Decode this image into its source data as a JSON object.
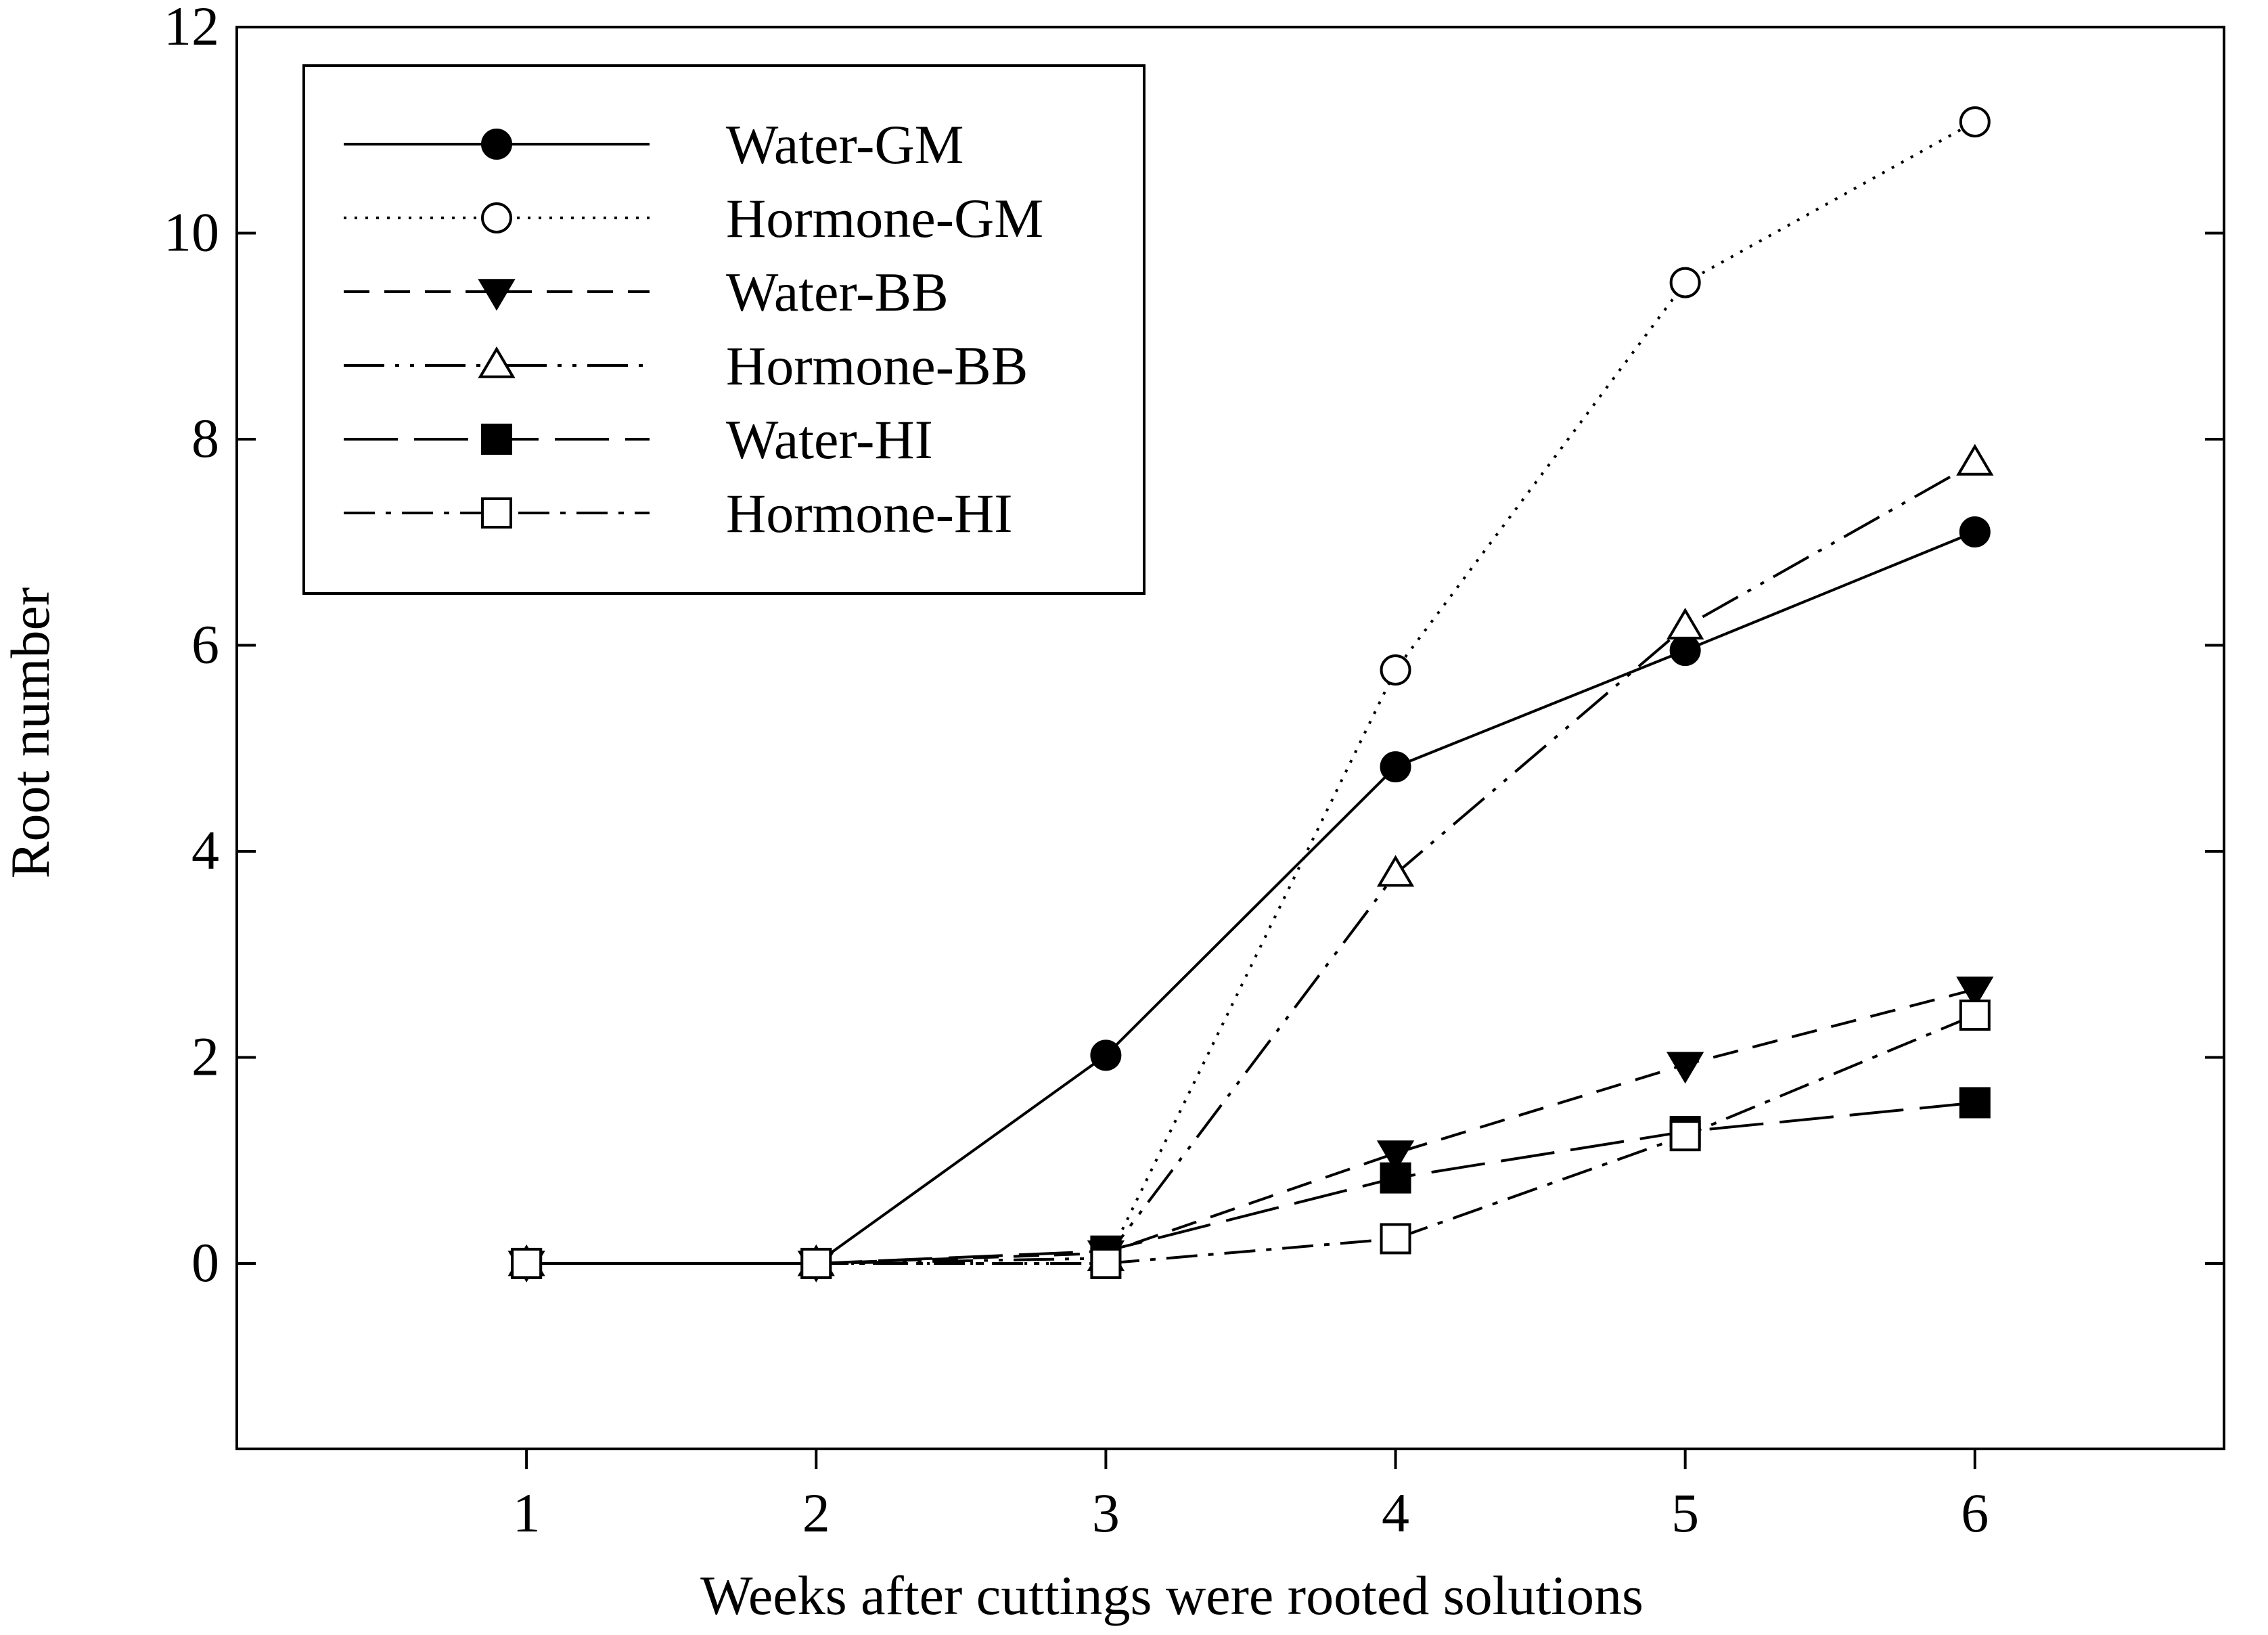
{
  "chart_data": {
    "type": "line",
    "title": "",
    "xlabel": "Weeks after cuttings were rooted solutions",
    "ylabel": "Root number",
    "xlim": [
      0.0,
      6.86
    ],
    "ylim": [
      -1.8,
      12
    ],
    "xticks": [
      1,
      2,
      3,
      4,
      5,
      6
    ],
    "yticks": [
      0,
      2,
      4,
      6,
      8,
      10,
      12
    ],
    "x": [
      1,
      2,
      3,
      4,
      5,
      6
    ],
    "legend_position": "top-left",
    "grid": false,
    "series": [
      {
        "name": "Water-GM",
        "marker": "filled-circle",
        "dash": "solid",
        "values": [
          0,
          0,
          2.02,
          4.82,
          5.95,
          7.1
        ]
      },
      {
        "name": "Hormone-GM",
        "marker": "open-circle",
        "dash": "dotted",
        "values": [
          0,
          0,
          0,
          5.76,
          9.52,
          11.08
        ]
      },
      {
        "name": "Water-BB",
        "marker": "filled-triangle-down",
        "dash": "dashed",
        "values": [
          0,
          0,
          0.1,
          1.07,
          1.93,
          2.66
        ]
      },
      {
        "name": "Hormone-BB",
        "marker": "open-triangle-up",
        "dash": "dash-dot-dot",
        "values": [
          0,
          0,
          0.05,
          3.78,
          6.18,
          7.77
        ]
      },
      {
        "name": "Water-HI",
        "marker": "filled-square",
        "dash": "long-dash",
        "values": [
          0,
          0,
          0.12,
          0.83,
          1.28,
          1.56
        ]
      },
      {
        "name": "Hormone-HI",
        "marker": "open-square",
        "dash": "dash-dot",
        "values": [
          0,
          0,
          0,
          0.24,
          1.24,
          2.41
        ]
      }
    ]
  }
}
